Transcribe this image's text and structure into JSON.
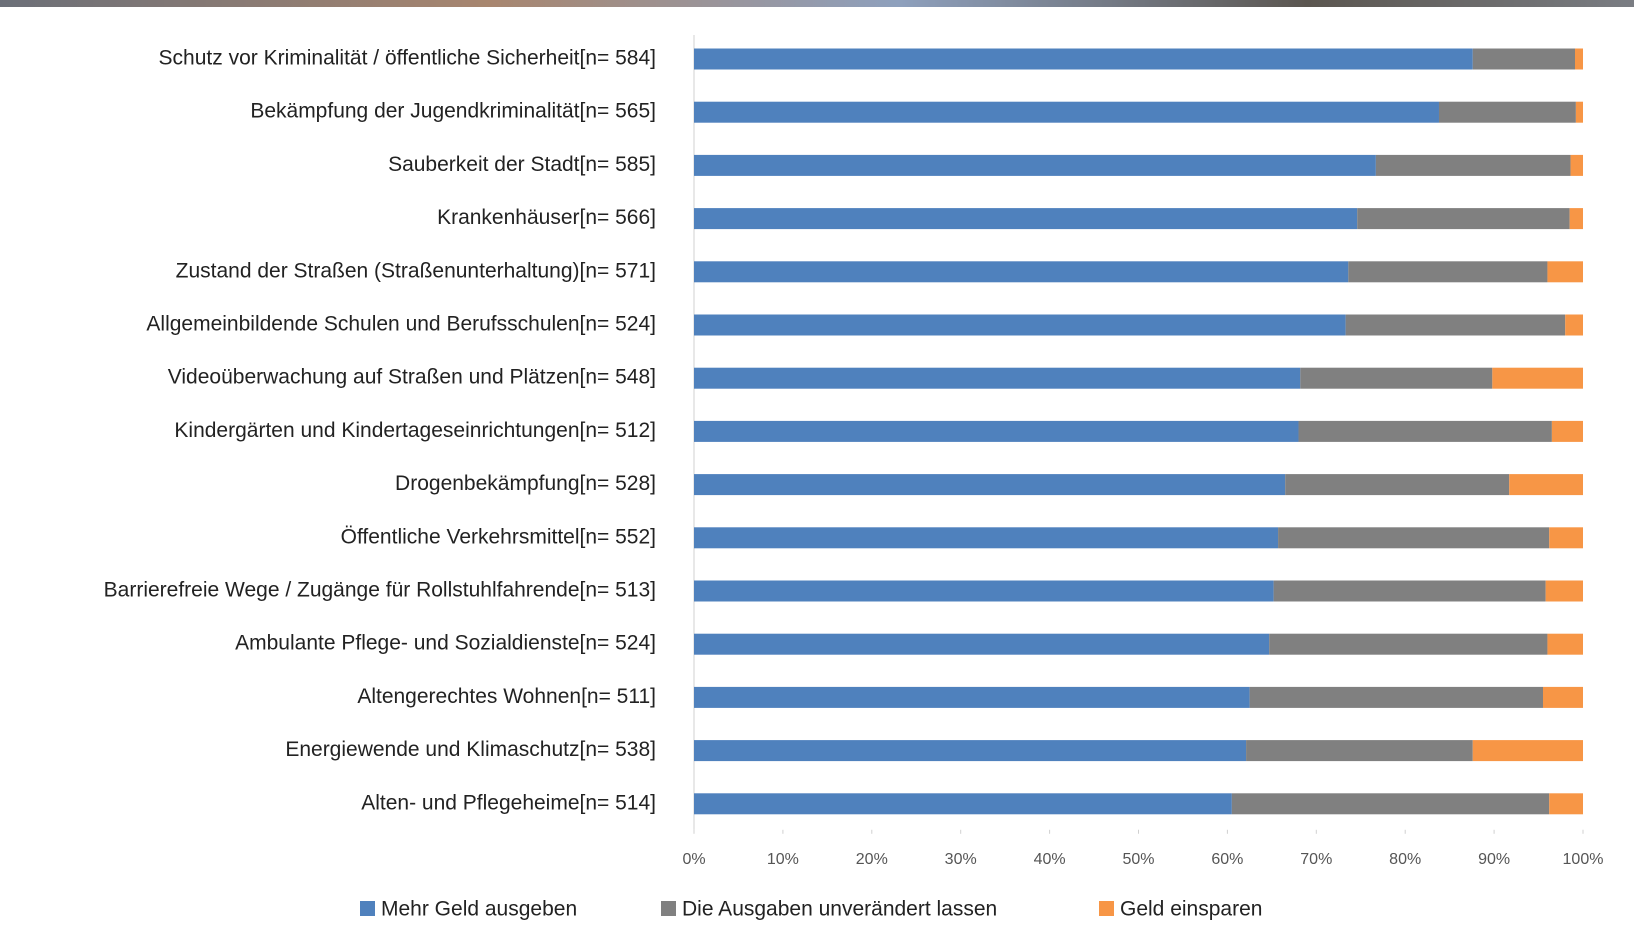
{
  "chart_data": {
    "type": "bar",
    "orientation": "horizontal",
    "stacked": true,
    "categories": [
      "Schutz vor Kriminalität / öffentliche Sicherheit[n= 584]",
      "Bekämpfung der Jugendkriminalität[n= 565]",
      "Sauberkeit der Stadt[n= 585]",
      "Krankenhäuser[n= 566]",
      "Zustand der Straßen (Straßenunterhaltung)[n= 571]",
      "Allgemeinbildende Schulen und Berufsschulen[n= 524]",
      "Videoüberwachung auf Straßen und Plätzen[n= 548]",
      "Kindergärten und Kindertageseinrichtungen[n= 512]",
      "Drogenbekämpfung[n= 528]",
      "Öffentliche Verkehrsmittel[n= 552]",
      "Barrierefreie Wege / Zugänge für Rollstuhlfahrende[n= 513]",
      "Ambulante Pflege- und Sozialdienste[n= 524]",
      "Altengerechtes Wohnen[n= 511]",
      "Energiewende und Klimaschutz[n= 538]",
      "Alten- und Pflegeheime[n= 514]"
    ],
    "series": [
      {
        "name": "Mehr Geld ausgeben",
        "color": "#4f81bd",
        "values": [
          87.6,
          83.8,
          76.7,
          74.6,
          73.6,
          73.3,
          68.2,
          68.0,
          66.5,
          65.7,
          65.2,
          64.7,
          62.5,
          62.1,
          60.5
        ]
      },
      {
        "name": "Die Ausgaben unverändert lassen",
        "color": "#808080",
        "values": [
          11.5,
          15.4,
          21.9,
          23.9,
          22.4,
          24.7,
          21.6,
          28.5,
          25.2,
          30.5,
          30.6,
          31.3,
          33.0,
          25.5,
          35.7
        ]
      },
      {
        "name": "Geld einsparen",
        "color": "#f79646",
        "values": [
          0.9,
          0.8,
          1.4,
          1.5,
          4.0,
          2.0,
          10.2,
          3.5,
          8.3,
          3.8,
          4.2,
          4.0,
          4.5,
          12.4,
          3.8
        ]
      }
    ],
    "xlim": [
      0,
      100
    ],
    "xticks": [
      {
        "value": 0,
        "label": "0%"
      },
      {
        "value": 10,
        "label": "10%"
      },
      {
        "value": 20,
        "label": "20%"
      },
      {
        "value": 30,
        "label": "30%"
      },
      {
        "value": 40,
        "label": "40%"
      },
      {
        "value": 50,
        "label": "50%"
      },
      {
        "value": 60,
        "label": "60%"
      },
      {
        "value": 70,
        "label": "70%"
      },
      {
        "value": 80,
        "label": "80%"
      },
      {
        "value": 90,
        "label": "90%"
      },
      {
        "value": 100,
        "label": "100%"
      }
    ],
    "legend": "bottom"
  }
}
